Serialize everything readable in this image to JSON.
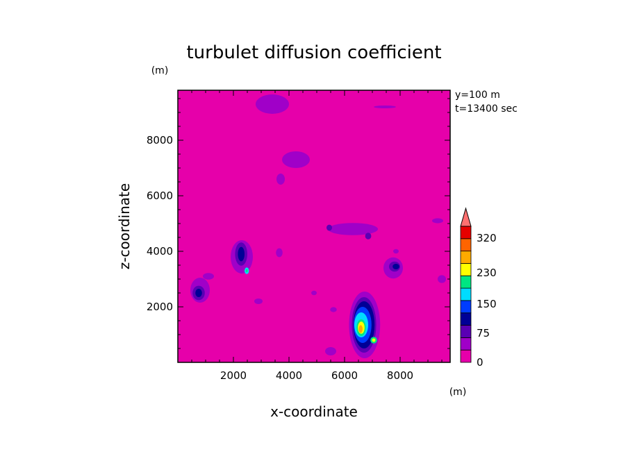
{
  "chart_data": {
    "type": "heatmap",
    "title": "turbulet diffusion coefficient",
    "xlabel": "x-coordinate",
    "ylabel": "z-coordinate",
    "x_unit": "(m)",
    "y_unit": "(m)",
    "xlim": [
      0,
      9800
    ],
    "ylim": [
      0,
      9800
    ],
    "xticks": [
      2000,
      4000,
      6000,
      8000
    ],
    "yticks": [
      2000,
      4000,
      6000,
      8000
    ],
    "annotations": [
      "y=100 m",
      "t=13400 sec"
    ],
    "colorbar": {
      "labels": [
        {
          "value": 0,
          "text": "0"
        },
        {
          "value": 75,
          "text": "75"
        },
        {
          "value": 150,
          "text": "150"
        },
        {
          "value": 230,
          "text": "230"
        },
        {
          "value": 320,
          "text": "320"
        }
      ],
      "colors": [
        "#e600aa",
        "#a000c8",
        "#5a00b4",
        "#000096",
        "#003cff",
        "#00dcff",
        "#00e682",
        "#ffff00",
        "#ffaa00",
        "#ff6400",
        "#e60000"
      ],
      "extend_color": "#ff7070"
    },
    "background_color": "#e600aa",
    "blobs": [
      {
        "cx": 6720,
        "cy": 1350,
        "rx": 560,
        "ry": 1200,
        "level": 1
      },
      {
        "cx": 6700,
        "cy": 1350,
        "rx": 440,
        "ry": 1000,
        "level": 2
      },
      {
        "cx": 6700,
        "cy": 1350,
        "rx": 380,
        "ry": 850,
        "level": 3
      },
      {
        "cx": 6650,
        "cy": 1350,
        "rx": 320,
        "ry": 650,
        "level": 4
      },
      {
        "cx": 6600,
        "cy": 1350,
        "rx": 250,
        "ry": 450,
        "level": 5
      },
      {
        "cx": 6600,
        "cy": 1250,
        "rx": 170,
        "ry": 300,
        "level": 6
      },
      {
        "cx": 6600,
        "cy": 1250,
        "rx": 120,
        "ry": 220,
        "level": 7
      },
      {
        "cx": 6580,
        "cy": 1200,
        "rx": 70,
        "ry": 140,
        "level": 8
      },
      {
        "cx": 7050,
        "cy": 800,
        "rx": 120,
        "ry": 120,
        "level": 6
      },
      {
        "cx": 7050,
        "cy": 800,
        "rx": 60,
        "ry": 60,
        "level": 7
      },
      {
        "cx": 2300,
        "cy": 3800,
        "rx": 400,
        "ry": 600,
        "level": 1
      },
      {
        "cx": 2280,
        "cy": 3900,
        "rx": 220,
        "ry": 420,
        "level": 2
      },
      {
        "cx": 2280,
        "cy": 3900,
        "rx": 120,
        "ry": 260,
        "level": 3
      },
      {
        "cx": 2480,
        "cy": 3300,
        "rx": 80,
        "ry": 120,
        "level": 5
      },
      {
        "cx": 2480,
        "cy": 3300,
        "rx": 40,
        "ry": 60,
        "level": 6
      },
      {
        "cx": 800,
        "cy": 2600,
        "rx": 350,
        "ry": 450,
        "level": 1
      },
      {
        "cx": 750,
        "cy": 2500,
        "rx": 220,
        "ry": 260,
        "level": 2
      },
      {
        "cx": 750,
        "cy": 2500,
        "rx": 120,
        "ry": 150,
        "level": 3
      },
      {
        "cx": 1100,
        "cy": 3100,
        "rx": 200,
        "ry": 120,
        "level": 1
      },
      {
        "cx": 7750,
        "cy": 3400,
        "rx": 350,
        "ry": 380,
        "level": 1
      },
      {
        "cx": 7800,
        "cy": 3450,
        "rx": 200,
        "ry": 180,
        "level": 2
      },
      {
        "cx": 7850,
        "cy": 3450,
        "rx": 120,
        "ry": 100,
        "level": 3
      },
      {
        "cx": 4250,
        "cy": 7300,
        "rx": 500,
        "ry": 300,
        "level": 1
      },
      {
        "cx": 3400,
        "cy": 9300,
        "rx": 600,
        "ry": 350,
        "level": 1
      },
      {
        "cx": 3700,
        "cy": 6600,
        "rx": 150,
        "ry": 200,
        "level": 1
      },
      {
        "cx": 3650,
        "cy": 3950,
        "rx": 120,
        "ry": 160,
        "level": 1
      },
      {
        "cx": 6300,
        "cy": 4800,
        "rx": 900,
        "ry": 220,
        "level": 1
      },
      {
        "cx": 6850,
        "cy": 4550,
        "rx": 110,
        "ry": 120,
        "level": 2
      },
      {
        "cx": 5450,
        "cy": 4850,
        "rx": 100,
        "ry": 110,
        "level": 2
      },
      {
        "cx": 2900,
        "cy": 2200,
        "rx": 150,
        "ry": 100,
        "level": 1
      },
      {
        "cx": 5600,
        "cy": 1900,
        "rx": 120,
        "ry": 90,
        "level": 1
      },
      {
        "cx": 5500,
        "cy": 400,
        "rx": 200,
        "ry": 150,
        "level": 1
      },
      {
        "cx": 9350,
        "cy": 5100,
        "rx": 200,
        "ry": 90,
        "level": 1
      },
      {
        "cx": 9500,
        "cy": 3000,
        "rx": 150,
        "ry": 140,
        "level": 1
      },
      {
        "cx": 7450,
        "cy": 9200,
        "rx": 400,
        "ry": 50,
        "level": 1
      },
      {
        "cx": 4900,
        "cy": 2500,
        "rx": 100,
        "ry": 80,
        "level": 1
      },
      {
        "cx": 7850,
        "cy": 4000,
        "rx": 100,
        "ry": 80,
        "level": 1
      }
    ]
  }
}
